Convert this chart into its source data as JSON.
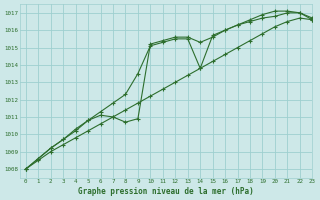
{
  "background_color": "#cde8e8",
  "grid_color": "#9ecfcf",
  "line_color": "#2d6e2d",
  "xlabel": "Graphe pression niveau de la mer (hPa)",
  "xlim": [
    -0.5,
    23
  ],
  "ylim": [
    1007.5,
    1017.5
  ],
  "yticks": [
    1008,
    1009,
    1010,
    1011,
    1012,
    1013,
    1014,
    1015,
    1016,
    1017
  ],
  "xticks": [
    0,
    1,
    2,
    3,
    4,
    5,
    6,
    7,
    8,
    9,
    10,
    11,
    12,
    13,
    14,
    15,
    16,
    17,
    18,
    19,
    20,
    21,
    22,
    23
  ],
  "line1_x": [
    0,
    1,
    2,
    3,
    4,
    5,
    6,
    7,
    8,
    9,
    10,
    11,
    12,
    13,
    14,
    15,
    16,
    17,
    18,
    19,
    20,
    21,
    22,
    23
  ],
  "line1_y": [
    1008.0,
    1008.5,
    1009.0,
    1009.4,
    1009.8,
    1010.2,
    1010.6,
    1011.0,
    1011.4,
    1011.8,
    1012.2,
    1012.6,
    1013.0,
    1013.4,
    1013.8,
    1014.2,
    1014.6,
    1015.0,
    1015.4,
    1015.8,
    1016.2,
    1016.5,
    1016.7,
    1016.6
  ],
  "line2_x": [
    0,
    1,
    2,
    3,
    4,
    5,
    6,
    7,
    8,
    9,
    10,
    11,
    12,
    13,
    14,
    15,
    16,
    17,
    18,
    19,
    20,
    21,
    22,
    23
  ],
  "line2_y": [
    1008.0,
    1008.6,
    1009.2,
    1009.7,
    1010.3,
    1010.8,
    1011.1,
    1011.0,
    1010.7,
    1010.9,
    1015.2,
    1015.4,
    1015.6,
    1015.6,
    1015.3,
    1015.6,
    1016.0,
    1016.3,
    1016.5,
    1016.7,
    1016.8,
    1017.0,
    1017.0,
    1016.6
  ],
  "line3_x": [
    0,
    1,
    2,
    3,
    4,
    5,
    6,
    7,
    8,
    9,
    10,
    11,
    12,
    13,
    14,
    15,
    16,
    17,
    18,
    19,
    20,
    21,
    22,
    23
  ],
  "line3_y": [
    1008.0,
    1008.6,
    1009.2,
    1009.7,
    1010.2,
    1010.8,
    1011.3,
    1011.8,
    1012.3,
    1013.5,
    1015.1,
    1015.3,
    1015.5,
    1015.5,
    1013.8,
    1015.7,
    1016.0,
    1016.3,
    1016.6,
    1016.9,
    1017.1,
    1017.1,
    1017.0,
    1016.7
  ]
}
